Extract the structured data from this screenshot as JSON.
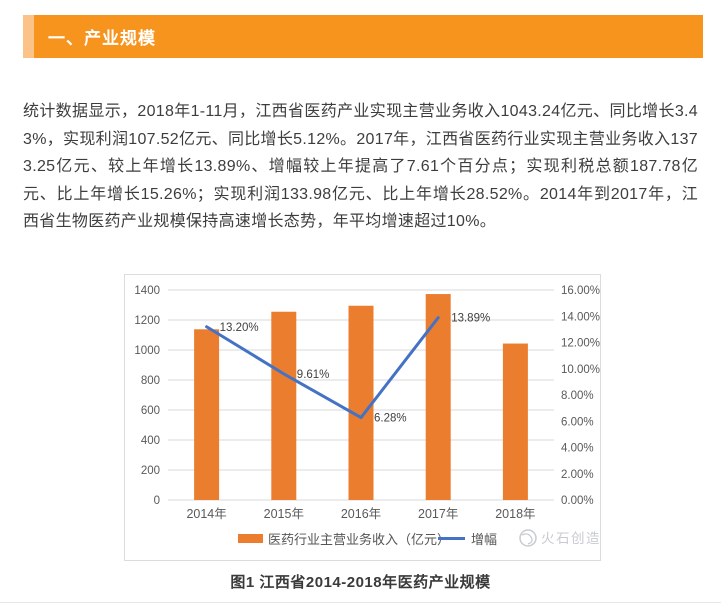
{
  "banner": {
    "title": "一、产业规模",
    "color": "#F7941D",
    "accent_color": "#FBC388"
  },
  "paragraph": "统计数据显示，2018年1-11月，江西省医药产业实现主营业务收入1043.24亿元、同比增长3.43%，实现利润107.52亿元、同比增长5.12%。2017年，江西省医药行业实现主营业务收入1373.25亿元、较上年增长13.89%、增幅较上年提高了7.61个百分点；实现利税总额187.78亿元、比上年增长15.26%；实现利润133.98亿元、比上年增长28.52%。2014年到2017年，江西省生物医药产业规模保持高速增长态势，年平均增速超过10%。",
  "chart_data": {
    "type": "bar",
    "subtype": "combo-bar-line",
    "categories": [
      "2014年",
      "2015年",
      "2016年",
      "2017年",
      "2018年"
    ],
    "series": [
      {
        "name": "医药行业主营业务收入（亿元）",
        "type": "bar",
        "axis": "left",
        "color": "#EB7D2F",
        "values": [
          1138,
          1255,
          1295,
          1373,
          1043
        ]
      },
      {
        "name": "增幅",
        "type": "line",
        "axis": "right",
        "color": "#4472C4",
        "values": [
          13.2,
          9.61,
          6.28,
          13.89,
          null
        ],
        "point_labels": [
          "13.20%",
          "9.61%",
          "6.28%",
          "13.89%",
          ""
        ]
      }
    ],
    "left_axis": {
      "min": 0,
      "max": 1400,
      "step": 200
    },
    "right_axis": {
      "min": 0,
      "max": 16,
      "step": 2,
      "suffix": "%"
    },
    "grid": true,
    "legend_position": "bottom",
    "watermark": "火石创造",
    "colors": {
      "grid": "#D9D9D9",
      "tick_label": "#595959",
      "point_label": "#3F3F3F",
      "legend_label": "#555555",
      "watermark": "#C7CBD1"
    }
  },
  "caption": "图1 江西省2014-2018年医药产业规模"
}
